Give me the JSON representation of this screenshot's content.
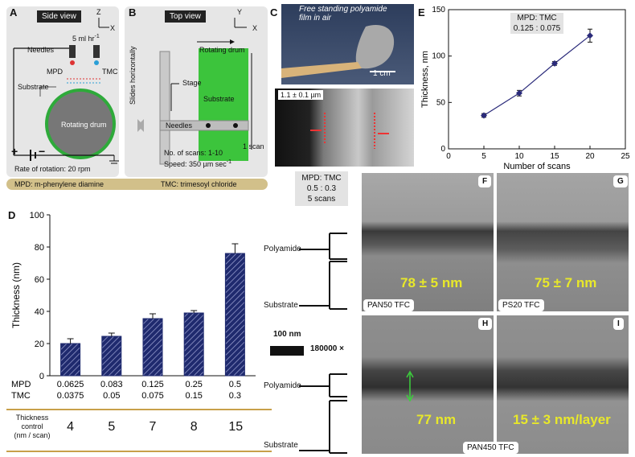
{
  "panelA": {
    "letter": "A",
    "title": "Side view",
    "flow": "5 ml hr",
    "flow_exp": "-1",
    "needles": "Needles",
    "mpd": "MPD",
    "tmc": "TMC",
    "substrate": "Substrate",
    "drum": "Rotating drum",
    "rotation": "Rate of rotation: 20 rpm",
    "axis_z": "Z",
    "axis_x": "X",
    "plus": "+",
    "minus": "−"
  },
  "panelB": {
    "letter": "B",
    "title": "Top view",
    "drum": "Rotating drum",
    "slides": "Slides horizontally",
    "stage": "Stage",
    "substrate": "Substrate",
    "needles": "Needles",
    "one_scan": "1 scan",
    "scans": "No. of scans: 1-10",
    "speed": "Speed: 350 µm sec",
    "speed_exp": "-1",
    "axis_y": "Y",
    "axis_x": "X"
  },
  "legendAB": {
    "mpd": "MPD: m-phenylene diamine",
    "tmc": "TMC: trimesoyl chloride"
  },
  "panelC": {
    "letter": "C",
    "film": "Free standing polyamide film in air",
    "scale": "1 cm",
    "thickness": "1.1 ± 0.1 µm"
  },
  "panelE": {
    "letter": "E",
    "box1": "MPD: TMC",
    "box2": "0.125 : 0.075"
  },
  "panelD": {
    "letter": "D",
    "mpd_label": "MPD",
    "tmc_label": "TMC",
    "tc1": "Thickness",
    "tc2": "control",
    "tc3": "(nm / scan)",
    "tc_values": [
      "4",
      "5",
      "7",
      "8",
      "15"
    ]
  },
  "tem": {
    "box1": "MPD: TMC",
    "box2": "0.5 : 0.3",
    "box3": "5 scans",
    "F": "F",
    "G": "G",
    "H": "H",
    "I": "I",
    "polyamide": "Polyamide",
    "substrate": "Substrate",
    "scale": "100 nm",
    "mag": "180000 ×",
    "F_val": "78 ±  5 nm",
    "G_val": "75 ± 7 nm",
    "H_val": "77 nm",
    "I_val": "15 ±  3 nm/layer",
    "F_tag": "PAN50 TFC",
    "G_tag": "PS20 TFC",
    "H_tag": "PAN450 TFC"
  },
  "chart_data": [
    {
      "id": "E",
      "type": "line",
      "title": "",
      "xlabel": "Number of scans",
      "ylabel": "Thickness, nm",
      "xlim": [
        0,
        25
      ],
      "ylim": [
        0,
        150
      ],
      "xticks": [
        0,
        5,
        10,
        15,
        20,
        25
      ],
      "yticks": [
        0,
        50,
        100,
        150
      ],
      "x": [
        5,
        10,
        15,
        20
      ],
      "y": [
        36,
        60,
        92,
        122
      ],
      "err": [
        2,
        3,
        2,
        7
      ],
      "color": "#2a2a7a"
    },
    {
      "id": "D",
      "type": "bar",
      "title": "",
      "ylabel": "Thickness (nm)",
      "ylim": [
        0,
        100
      ],
      "yticks": [
        0,
        20,
        40,
        60,
        80,
        100
      ],
      "categories": [
        "0.0625",
        "0.083",
        "0.125",
        "0.25",
        "0.5"
      ],
      "mpd": [
        "0.0625",
        "0.083",
        "0.125",
        "0.25",
        "0.5"
      ],
      "tmc": [
        "0.0375",
        "0.05",
        "0.075",
        "0.15",
        "0.3"
      ],
      "values": [
        20,
        24.5,
        35.5,
        39,
        76
      ],
      "err": [
        3,
        2,
        3,
        1.5,
        6
      ],
      "color": "#1f2a6e"
    }
  ]
}
